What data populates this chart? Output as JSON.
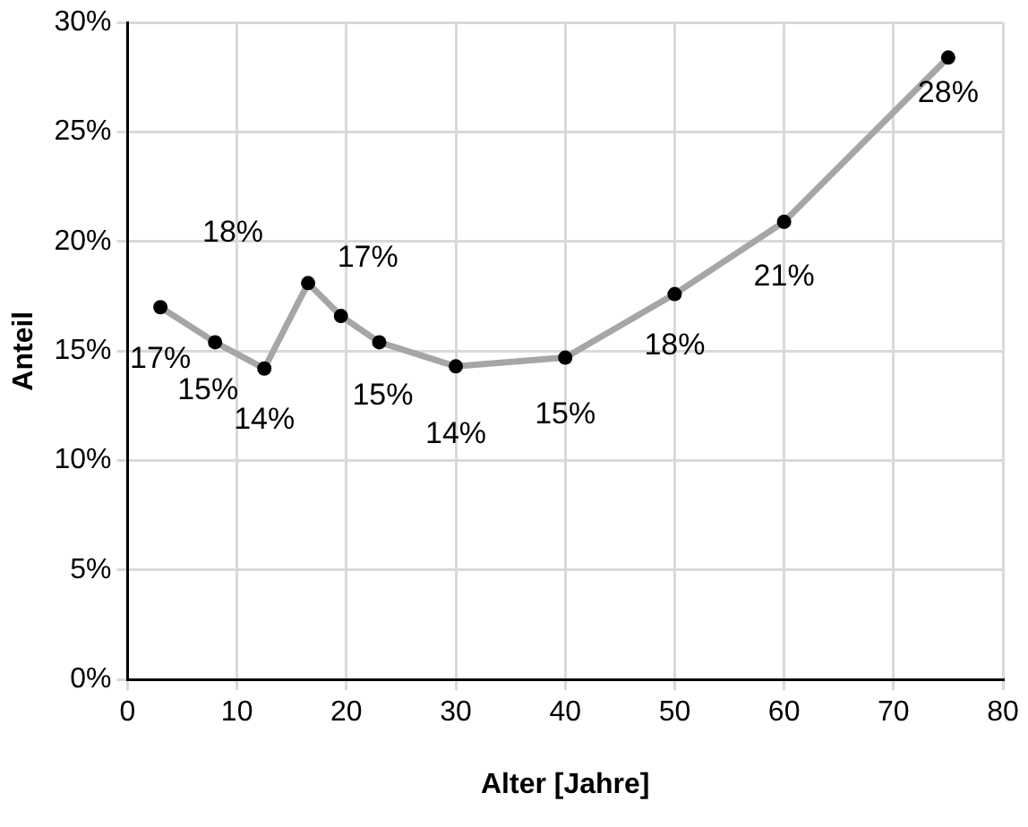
{
  "chart_data": {
    "type": "line",
    "xlabel": "Alter [Jahre]",
    "ylabel": "Anteil",
    "x": [
      3,
      8,
      12.5,
      16.5,
      19.5,
      23,
      30,
      40,
      50,
      60,
      75
    ],
    "series": [
      {
        "color": "#a6a6a6",
        "values": [
          17.0,
          15.4,
          14.2,
          18.1,
          16.6,
          15.4,
          14.3,
          14.7,
          17.6,
          20.9,
          28.4
        ],
        "value_labels": [
          "17%",
          "15%",
          "14%",
          "18%",
          "17%",
          "15%",
          "14%",
          "15%",
          "18%",
          "21%",
          "28%"
        ]
      }
    ],
    "xlim": [
      0,
      80
    ],
    "xticks": [
      0,
      10,
      20,
      30,
      40,
      50,
      60,
      70,
      80
    ],
    "ylim": [
      0,
      30
    ],
    "yticks": [
      {
        "value": 0,
        "label": "0%"
      },
      {
        "value": 5,
        "label": "5%"
      },
      {
        "value": 10,
        "label": "10%"
      },
      {
        "value": 15,
        "label": "15%"
      },
      {
        "value": 20,
        "label": "20%"
      },
      {
        "value": 25,
        "label": "25%"
      },
      {
        "value": 30,
        "label": "30%"
      }
    ],
    "grid": true,
    "legend": false,
    "marker": "circle",
    "line_style": "solid"
  }
}
